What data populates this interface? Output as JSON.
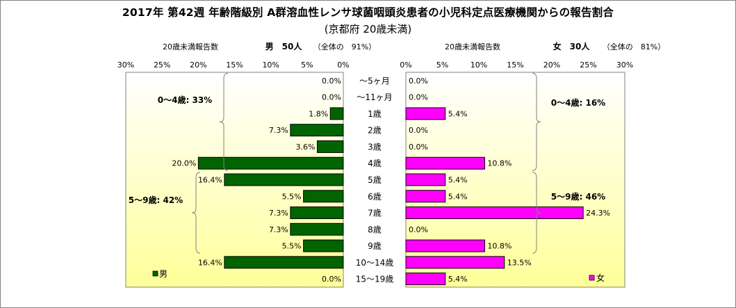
{
  "title": "2017年 第42週 年齢階級別 A群溶血性レンサ球菌咽頭炎患者の小児科定点医療機関からの報告割合",
  "subtitle": "(京都府 20歳未満)",
  "chart_data": {
    "type": "bar",
    "orientation": "horizontal-butterfly",
    "categories": [
      "〜5ヶ月",
      "〜11ヶ月",
      "1歳",
      "2歳",
      "3歳",
      "4歳",
      "5歳",
      "6歳",
      "7歳",
      "8歳",
      "9歳",
      "10〜14歳",
      "15〜19歳"
    ],
    "tick_labels": [
      "0%",
      "5%",
      "10%",
      "15%",
      "20%",
      "25%",
      "30%"
    ],
    "xlim": [
      0,
      30
    ],
    "series": [
      {
        "name": "男",
        "side": "left",
        "color": "#006400",
        "header_label": "20歳未満報告数",
        "header_count": "男　50人",
        "header_share": "（全体の　91%）",
        "values": [
          0.0,
          0.0,
          1.8,
          7.3,
          3.6,
          20.0,
          16.4,
          5.5,
          7.3,
          7.3,
          5.5,
          16.4,
          0.0
        ],
        "labels": [
          "0.0%",
          "0.0%",
          "1.8%",
          "7.3%",
          "3.6%",
          "20.0%",
          "16.4%",
          "5.5%",
          "7.3%",
          "7.3%",
          "5.5%",
          "16.4%",
          "0.0%"
        ],
        "brackets": [
          {
            "label": "0〜4歳: 33%",
            "from": 0,
            "to": 5
          },
          {
            "label": "5〜9歳: 42%",
            "from": 6,
            "to": 10
          }
        ]
      },
      {
        "name": "女",
        "side": "right",
        "color": "#ff00ff",
        "header_label": "20歳未満報告数",
        "header_count": "女　30人",
        "header_share": "（全体の　81%）",
        "values": [
          0.0,
          0.0,
          5.4,
          0.0,
          0.0,
          10.8,
          5.4,
          5.4,
          24.3,
          0.0,
          10.8,
          13.5,
          5.4
        ],
        "labels": [
          "0.0%",
          "0.0%",
          "5.4%",
          "0.0%",
          "0.0%",
          "10.8%",
          "5.4%",
          "5.4%",
          "24.3%",
          "0.0%",
          "10.8%",
          "13.5%",
          "5.4%"
        ],
        "brackets": [
          {
            "label": "0〜4歳: 16%",
            "from": 0,
            "to": 5
          },
          {
            "label": "5〜9歳: 46%",
            "from": 6,
            "to": 10
          }
        ]
      }
    ],
    "background": {
      "gradient_top": "#ffffff",
      "gradient_bottom": "#ffff99"
    }
  }
}
